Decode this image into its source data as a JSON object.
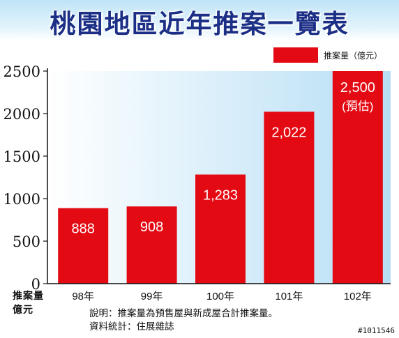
{
  "chart_data": {
    "type": "bar",
    "title": "桃園地區近年推案一覽表",
    "categories": [
      "98年",
      "99年",
      "100年",
      "101年",
      "102年"
    ],
    "series": [
      {
        "name": "推案量（億元）",
        "values": [
          888,
          908,
          1283,
          2022,
          2500
        ],
        "data_labels": [
          "888",
          "908",
          "1,283",
          "2,022",
          "2,500"
        ]
      }
    ],
    "estimate_note": "(預估)",
    "y_ticks": [
      "0",
      "500",
      "1000",
      "1500",
      "2000",
      "2500"
    ],
    "ylim": [
      0,
      2500
    ],
    "ylabel_line1": "推案量",
    "ylabel_line2": "億元",
    "legend_position": "top-right",
    "grid": false,
    "bar_color": "#e40a14",
    "label_color": "#ffffff"
  },
  "footnotes": {
    "note": "說明：推案量為預售屋與新成屋合計推案量。",
    "source": "資料統計：住展雜誌"
  },
  "watermark": "#1011546",
  "colors": {
    "title": "#1b2f86",
    "plot_bg_left": "#ffffff",
    "plot_bg_right": "#b6def5"
  }
}
